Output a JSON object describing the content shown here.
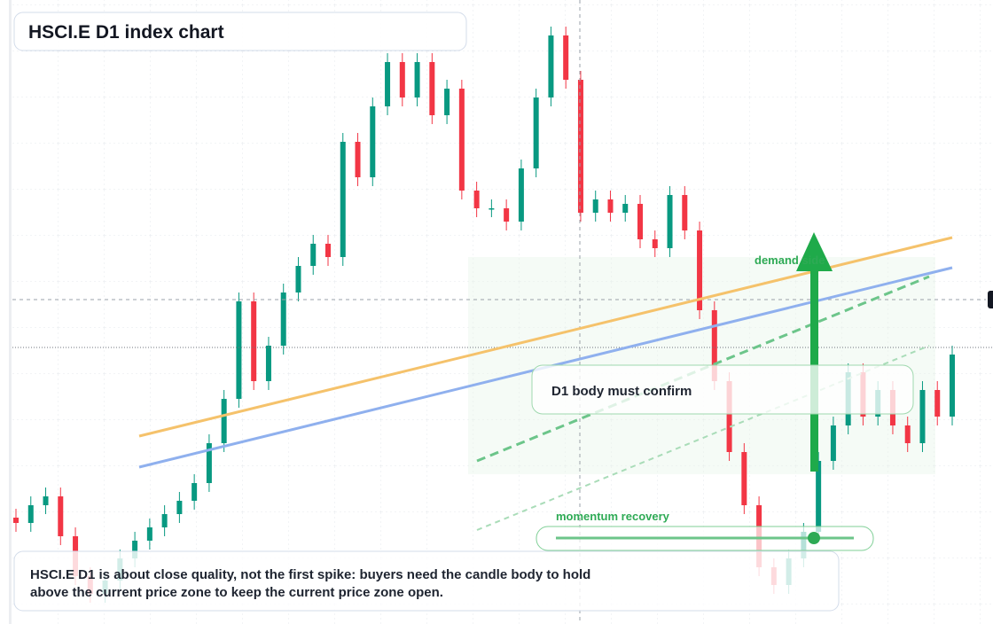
{
  "chart_data": {
    "type": "candlestick",
    "title": "HSCI.E D1 index chart",
    "ylim": [
      0,
      704
    ],
    "up_color": "#089981",
    "down_color": "#f23645",
    "open": [
      120,
      114,
      134,
      144,
      99,
      54,
      34,
      49,
      74,
      94,
      109,
      124,
      139,
      159,
      204,
      254,
      364,
      274,
      314,
      374,
      404,
      429,
      414,
      544,
      504,
      584,
      634,
      594,
      634,
      574,
      604,
      489,
      469,
      469,
      454,
      514,
      594,
      664,
      614,
      464,
      479,
      464,
      474,
      434,
      424,
      484,
      444,
      354,
      274,
      194,
      134,
      64,
      44,
      74,
      104,
      184,
      224,
      284,
      234,
      264,
      224,
      204,
      264,
      234
    ],
    "high": [
      130,
      144,
      154,
      154,
      109,
      64,
      59,
      84,
      104,
      119,
      134,
      149,
      169,
      214,
      264,
      374,
      374,
      324,
      384,
      414,
      439,
      439,
      554,
      554,
      594,
      644,
      644,
      644,
      644,
      614,
      614,
      499,
      479,
      479,
      524,
      604,
      674,
      674,
      624,
      489,
      489,
      484,
      484,
      444,
      494,
      494,
      454,
      364,
      284,
      204,
      144,
      74,
      84,
      114,
      194,
      234,
      294,
      294,
      274,
      274,
      234,
      274,
      274,
      314
    ],
    "low": [
      104,
      104,
      124,
      89,
      44,
      24,
      24,
      39,
      64,
      84,
      99,
      114,
      129,
      149,
      194,
      244,
      264,
      264,
      304,
      364,
      394,
      404,
      404,
      494,
      494,
      574,
      584,
      584,
      564,
      564,
      479,
      459,
      459,
      444,
      444,
      504,
      584,
      604,
      454,
      454,
      454,
      454,
      424,
      414,
      414,
      434,
      344,
      264,
      184,
      124,
      54,
      34,
      34,
      64,
      94,
      174,
      214,
      224,
      224,
      214,
      194,
      194,
      224,
      224
    ],
    "close": [
      114,
      134,
      144,
      99,
      54,
      34,
      49,
      74,
      94,
      109,
      124,
      139,
      159,
      204,
      254,
      364,
      274,
      314,
      374,
      404,
      429,
      414,
      544,
      504,
      584,
      634,
      594,
      634,
      574,
      604,
      489,
      469,
      469,
      454,
      514,
      594,
      664,
      614,
      464,
      479,
      464,
      474,
      434,
      424,
      484,
      444,
      354,
      274,
      194,
      134,
      64,
      44,
      74,
      104,
      184,
      224,
      284,
      234,
      264,
      224,
      204,
      264,
      234,
      304
    ],
    "annotations": {
      "demand": "demand side",
      "confirm": "D1 body must confirm",
      "momentum": "momentum recovery"
    },
    "note": [
      "HSCI.E D1 is about close quality, not the first spike: buyers need the candle body to hold",
      "above the current price zone to keep the current price zone open."
    ]
  }
}
